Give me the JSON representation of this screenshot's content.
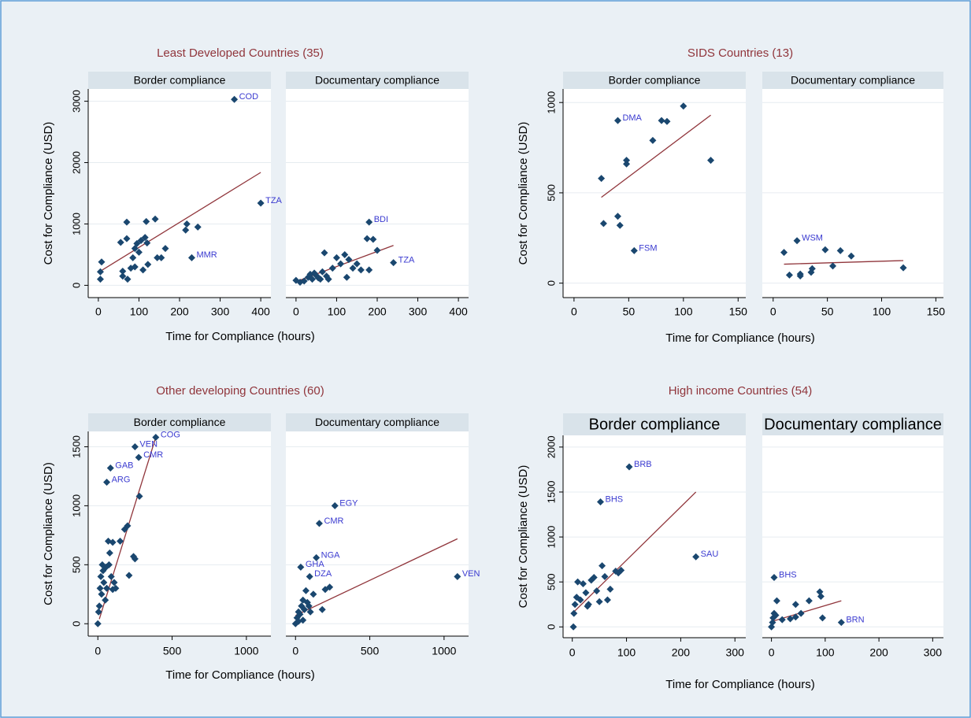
{
  "chart_data": [
    {
      "type": "scatter",
      "title": "Least Developed Countries (35)",
      "xlabel": "Time for Compliance (hours)",
      "ylabel": "Cost for Compliance (USD)",
      "xlim": [
        -25,
        425
      ],
      "xticks": [
        0,
        100,
        200,
        300,
        400
      ],
      "ylim": [
        -200,
        3200
      ],
      "yticks": [
        0,
        1000,
        2000,
        3000
      ],
      "grid": true,
      "color": "#1a476f",
      "fit_color": "#90353b",
      "panels": [
        {
          "subtitle": "Border compliance",
          "x": [
            335,
            400,
            230,
            5,
            5,
            8,
            55,
            60,
            60,
            70,
            70,
            72,
            80,
            85,
            90,
            90,
            95,
            100,
            105,
            110,
            115,
            118,
            120,
            122,
            140,
            145,
            155,
            165,
            215,
            218,
            245
          ],
          "y": [
            3030,
            1340,
            450,
            100,
            220,
            380,
            700,
            150,
            230,
            760,
            1030,
            100,
            280,
            450,
            600,
            300,
            680,
            540,
            730,
            250,
            780,
            1040,
            690,
            340,
            1080,
            450,
            450,
            600,
            900,
            1000,
            950
          ],
          "point_labels": [
            "COD",
            "TZA",
            "MMR",
            null,
            null,
            null,
            null,
            null,
            null,
            null,
            null,
            null,
            null,
            null,
            null,
            null,
            null,
            null,
            null,
            null,
            null,
            null,
            null,
            null,
            null,
            null,
            null,
            null,
            null,
            null,
            null
          ],
          "fit": {
            "x": [
              5,
              400
            ],
            "y": [
              230,
              1840
            ]
          }
        },
        {
          "subtitle": "Documentary compliance",
          "x": [
            180,
            240,
            0,
            10,
            20,
            30,
            35,
            40,
            45,
            50,
            55,
            60,
            65,
            70,
            75,
            80,
            90,
            100,
            110,
            120,
            125,
            130,
            140,
            150,
            160,
            175,
            180,
            190,
            200
          ],
          "y": [
            1030,
            370,
            80,
            50,
            70,
            130,
            180,
            100,
            200,
            160,
            120,
            100,
            220,
            530,
            150,
            100,
            280,
            450,
            350,
            500,
            130,
            420,
            280,
            350,
            250,
            760,
            250,
            750,
            570
          ],
          "point_labels": [
            "BDI",
            "TZA",
            null,
            null,
            null,
            null,
            null,
            null,
            null,
            null,
            null,
            null,
            null,
            null,
            null,
            null,
            null,
            null,
            null,
            null,
            null,
            null,
            null,
            null,
            null,
            null,
            null,
            null,
            null
          ],
          "fit": {
            "x": [
              0,
              240
            ],
            "y": [
              60,
              650
            ]
          }
        }
      ]
    },
    {
      "type": "scatter",
      "title": "SIDS Countries (13)",
      "xlabel": "Time for Compliance (hours)",
      "ylabel": "Cost for Compliance (USD)",
      "xlim": [
        -10,
        157
      ],
      "xticks": [
        0,
        50,
        100,
        150
      ],
      "ylim": [
        -80,
        1075
      ],
      "yticks": [
        0,
        500,
        1000
      ],
      "grid": true,
      "color": "#1a476f",
      "fit_color": "#90353b",
      "panels": [
        {
          "subtitle": "Border compliance",
          "x": [
            40,
            55,
            25,
            27,
            40,
            42,
            48,
            48,
            72,
            80,
            85,
            100,
            125
          ],
          "y": [
            900,
            180,
            580,
            330,
            370,
            320,
            680,
            660,
            790,
            900,
            895,
            980,
            680
          ],
          "point_labels": [
            "DMA",
            "FSM",
            null,
            null,
            null,
            null,
            null,
            null,
            null,
            null,
            null,
            null,
            null
          ],
          "fit": {
            "x": [
              25,
              125
            ],
            "y": [
              475,
              930
            ]
          }
        },
        {
          "subtitle": "Documentary compliance",
          "x": [
            22,
            10,
            15,
            25,
            25,
            35,
            36,
            48,
            55,
            62,
            72,
            120
          ],
          "y": [
            235,
            170,
            45,
            50,
            40,
            60,
            80,
            185,
            95,
            180,
            150,
            85
          ],
          "point_labels": [
            "WSM",
            null,
            null,
            null,
            null,
            null,
            null,
            null,
            null,
            null,
            null,
            null
          ],
          "fit": {
            "x": [
              10,
              120
            ],
            "y": [
              105,
              125
            ]
          }
        }
      ]
    },
    {
      "type": "scatter",
      "title": "Other developing Countries (60)",
      "xlabel": "Time for Compliance (hours)",
      "ylabel": "Cost for Compliance (USD)",
      "xlim": [
        -65,
        1165
      ],
      "xticks": [
        0,
        500,
        1000
      ],
      "ylim": [
        -105,
        1630
      ],
      "yticks": [
        0,
        500,
        1000,
        1500
      ],
      "grid": true,
      "color": "#1a476f",
      "fit_color": "#90353b",
      "panels": [
        {
          "subtitle": "Border compliance",
          "x": [
            250,
            390,
            275,
            85,
            60,
            0,
            5,
            10,
            15,
            20,
            25,
            30,
            35,
            40,
            50,
            55,
            60,
            70,
            75,
            80,
            90,
            100,
            110,
            120,
            180,
            200,
            210,
            240,
            250,
            280,
            100,
            150
          ],
          "y": [
            1500,
            1580,
            1410,
            1320,
            1200,
            0,
            100,
            150,
            300,
            400,
            250,
            500,
            450,
            350,
            200,
            480,
            300,
            700,
            500,
            600,
            400,
            690,
            350,
            300,
            800,
            830,
            410,
            570,
            550,
            1080,
            290,
            700
          ],
          "point_labels": [
            "VEN",
            "COG",
            "CMR",
            "GAB",
            "ARG",
            null,
            null,
            null,
            null,
            null,
            null,
            null,
            null,
            null,
            null,
            null,
            null,
            null,
            null,
            null,
            null,
            null,
            null,
            null,
            null,
            null,
            null,
            null,
            null,
            null,
            null,
            null
          ],
          "fit": {
            "x": [
              10,
              390
            ],
            "y": [
              40,
              1580
            ]
          }
        },
        {
          "subtitle": "Documentary compliance",
          "x": [
            265,
            160,
            140,
            35,
            95,
            1090,
            0,
            10,
            20,
            30,
            40,
            50,
            60,
            70,
            80,
            90,
            100,
            120,
            180,
            200,
            230,
            50,
            20
          ],
          "y": [
            1000,
            850,
            560,
            480,
            400,
            400,
            0,
            50,
            100,
            80,
            150,
            200,
            120,
            280,
            180,
            150,
            100,
            250,
            120,
            290,
            310,
            30,
            20
          ],
          "point_labels": [
            "EGY",
            "CMR",
            "NGA",
            "GHA",
            "DZA",
            "VEN",
            null,
            null,
            null,
            null,
            null,
            null,
            null,
            null,
            null,
            null,
            null,
            null,
            null,
            null,
            null,
            null,
            null
          ],
          "fit": {
            "x": [
              0,
              1090
            ],
            "y": [
              70,
              720
            ]
          }
        }
      ]
    },
    {
      "type": "scatter",
      "title": "High income Countries (54)",
      "xlabel": "Time for Compliance (hours)",
      "ylabel": "Cost for Compliance (USD)",
      "xlim": [
        -17,
        320
      ],
      "xticks": [
        0,
        100,
        200,
        300
      ],
      "ylim": [
        -120,
        2130
      ],
      "yticks": [
        0,
        500,
        1000,
        1500,
        2000
      ],
      "grid": true,
      "color": "#1a476f",
      "fit_color": "#90353b",
      "panels": [
        {
          "subtitle": "Border compliance",
          "x": [
            105,
            52,
            228,
            2,
            3,
            5,
            8,
            10,
            15,
            20,
            25,
            28,
            35,
            40,
            45,
            50,
            55,
            60,
            65,
            70,
            80,
            85,
            90,
            30
          ],
          "y": [
            1780,
            1390,
            780,
            0,
            150,
            250,
            330,
            500,
            300,
            480,
            380,
            230,
            520,
            550,
            400,
            280,
            680,
            560,
            300,
            420,
            620,
            600,
            630,
            250
          ],
          "point_labels": [
            "BRB",
            "BHS",
            "SAU",
            null,
            null,
            null,
            null,
            null,
            null,
            null,
            null,
            null,
            null,
            null,
            null,
            null,
            null,
            null,
            null,
            null,
            null,
            null,
            null,
            null
          ],
          "fit": {
            "x": [
              0,
              228
            ],
            "y": [
              150,
              1500
            ]
          }
        },
        {
          "subtitle": "Documentary compliance",
          "x": [
            5,
            130,
            0,
            2,
            3,
            5,
            8,
            10,
            20,
            35,
            45,
            45,
            55,
            70,
            90,
            95,
            92
          ],
          "y": [
            550,
            50,
            0,
            50,
            100,
            150,
            130,
            290,
            80,
            90,
            250,
            110,
            150,
            290,
            390,
            100,
            340
          ],
          "point_labels": [
            "BHS",
            "BRN",
            null,
            null,
            null,
            null,
            null,
            null,
            null,
            null,
            null,
            null,
            null,
            null,
            null,
            null,
            null
          ],
          "fit": {
            "x": [
              0,
              130
            ],
            "y": [
              60,
              290
            ]
          }
        }
      ]
    }
  ]
}
